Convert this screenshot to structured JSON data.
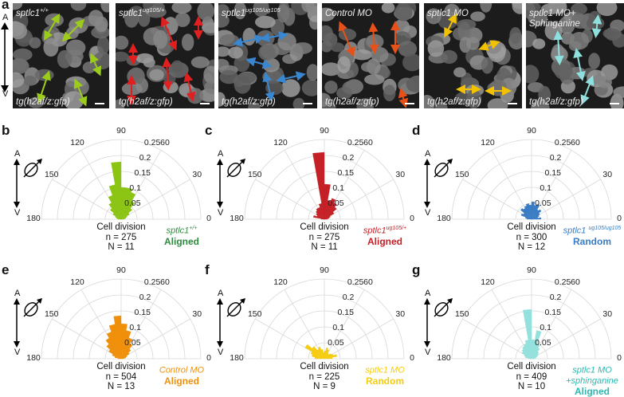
{
  "panel_a": {
    "letter": "a",
    "axis": {
      "top": "A",
      "bottom": "V"
    },
    "images": [
      {
        "title_base": "sptlc1",
        "title_sup": "+/+",
        "title_line2": "",
        "line": "tg(h2af/z:gfp)",
        "arrow_color": "#9ccc1a"
      },
      {
        "title_base": "sptlc1",
        "title_sup": "ug105/+",
        "title_line2": "",
        "line": "tg(h2af/z:gfp)",
        "arrow_color": "#e02020"
      },
      {
        "title_base": "sptlc1",
        "title_sup": "ug105/ug105",
        "title_line2": "",
        "line": "tg(h2af/z:gfp)",
        "arrow_color": "#3a86cf"
      },
      {
        "title_base": "Control MO",
        "title_sup": "",
        "title_line2": "",
        "line": "tg(h2af/z:gfp)",
        "arrow_color": "#e8501a"
      },
      {
        "title_base": "sptlc1 MO",
        "title_sup": "",
        "title_line2": "",
        "line": "tg(h2af/z:gfp)",
        "arrow_color": "#f2c200"
      },
      {
        "title_base": "sptlc1 MO+",
        "title_sup": "",
        "title_line2": "Sphinganine",
        "line": "tg(h2af/z:gfp)",
        "arrow_color": "#8ee0de"
      }
    ]
  },
  "chart_data": [
    {
      "type": "polar-histogram",
      "letter": "b",
      "color": "#8cc414",
      "label_color": "#2e8b3e",
      "angle_ticks": [
        "180",
        "150",
        "120",
        "90",
        "60",
        "30",
        "0"
      ],
      "radial_ticks": [
        "0.05",
        "0.1",
        "0.15",
        "0.2",
        "0.25"
      ],
      "rlim": [
        0,
        0.25
      ],
      "axis": {
        "top": "A",
        "bottom": "V"
      },
      "caption": {
        "title": "Cell division",
        "n": "n = 275",
        "N": "N = 11"
      },
      "condition": {
        "base": "sptlc1",
        "sup": "+/+",
        "line2": "",
        "status": "Aligned"
      },
      "bin_width_deg": 10,
      "bins_center_deg": [
        5,
        15,
        25,
        35,
        45,
        55,
        65,
        75,
        85,
        95,
        105,
        115,
        125,
        135,
        145,
        155,
        165,
        175
      ],
      "values": [
        0.01,
        0.015,
        0.02,
        0.03,
        0.045,
        0.065,
        0.09,
        0.1,
        0.1,
        0.18,
        0.11,
        0.08,
        0.06,
        0.045,
        0.03,
        0.02,
        0.015,
        0.01
      ]
    },
    {
      "type": "polar-histogram",
      "letter": "c",
      "color": "#c42026",
      "label_color": "#c42026",
      "angle_ticks": [
        "180",
        "150",
        "120",
        "90",
        "60",
        "30",
        "0"
      ],
      "radial_ticks": [
        "0.05",
        "0.1",
        "0.15",
        "0.2",
        "0.25"
      ],
      "rlim": [
        0,
        0.25
      ],
      "axis": {
        "top": "A",
        "bottom": "V"
      },
      "caption": {
        "title": "Cell division",
        "n": "n = 275",
        "N": "N = 11"
      },
      "condition": {
        "base": "sptlc1",
        "sup": "ug105/+",
        "line2": "",
        "status": "Aligned"
      },
      "bin_width_deg": 10,
      "bins_center_deg": [
        5,
        15,
        25,
        35,
        45,
        55,
        65,
        75,
        85,
        95,
        105,
        115,
        125,
        135,
        145,
        155,
        165,
        175
      ],
      "values": [
        0.01,
        0.015,
        0.02,
        0.035,
        0.05,
        0.06,
        0.07,
        0.06,
        0.11,
        0.21,
        0.05,
        0.04,
        0.04,
        0.035,
        0.03,
        0.025,
        0.035,
        0.01
      ]
    },
    {
      "type": "polar-histogram",
      "letter": "d",
      "color": "#3a7cc4",
      "label_color": "#3a7cc4",
      "angle_ticks": [
        "180",
        "150",
        "120",
        "90",
        "60",
        "30",
        "0"
      ],
      "radial_ticks": [
        "0.05",
        "0.1",
        "0.15",
        "0.2",
        "0.25"
      ],
      "rlim": [
        0,
        0.25
      ],
      "axis": {
        "top": "A",
        "bottom": "V"
      },
      "caption": {
        "title": "Cell division",
        "n": "n = 300",
        "N": "N = 12"
      },
      "condition": {
        "base": "sptlc1 ",
        "sup": "ug105/ug105",
        "line2": "",
        "status": "Random"
      },
      "bin_width_deg": 10,
      "bins_center_deg": [
        5,
        15,
        25,
        35,
        45,
        55,
        65,
        75,
        85,
        95,
        105,
        115,
        125,
        135,
        145,
        155,
        165,
        175
      ],
      "values": [
        0.03,
        0.02,
        0.025,
        0.03,
        0.04,
        0.035,
        0.05,
        0.045,
        0.055,
        0.045,
        0.05,
        0.045,
        0.04,
        0.045,
        0.03,
        0.035,
        0.02,
        0.015
      ]
    },
    {
      "type": "polar-histogram",
      "letter": "e",
      "color": "#f0900a",
      "label_color": "#f0900a",
      "angle_ticks": [
        "180",
        "150",
        "120",
        "90",
        "60",
        "30",
        "0"
      ],
      "radial_ticks": [
        "0.05",
        "0.1",
        "0.15",
        "0.2",
        "0.25"
      ],
      "rlim": [
        0,
        0.25
      ],
      "axis": {
        "top": "A",
        "bottom": "V"
      },
      "caption": {
        "title": "Cell division",
        "n": "n = 504",
        "N": "N = 13"
      },
      "condition": {
        "base": "Control MO",
        "sup": "",
        "line2": "",
        "status": "Aligned"
      },
      "bin_width_deg": 10,
      "bins_center_deg": [
        5,
        15,
        25,
        35,
        45,
        55,
        65,
        75,
        85,
        95,
        105,
        115,
        125,
        135,
        145,
        155,
        165,
        175
      ],
      "values": [
        0.01,
        0.015,
        0.02,
        0.03,
        0.04,
        0.055,
        0.07,
        0.09,
        0.11,
        0.135,
        0.11,
        0.09,
        0.075,
        0.06,
        0.045,
        0.03,
        0.02,
        0.01
      ]
    },
    {
      "type": "polar-histogram",
      "letter": "f",
      "color": "#f5cc10",
      "label_color": "#f5cc10",
      "angle_ticks": [
        "180",
        "150",
        "120",
        "90",
        "60",
        "30",
        "0"
      ],
      "radial_ticks": [
        "0.05",
        "0.1",
        "0.15",
        "0.2",
        "0.25"
      ],
      "rlim": [
        0,
        0.25
      ],
      "axis": {
        "top": "A",
        "bottom": "V"
      },
      "caption": {
        "title": "Cell division",
        "n": "n = 225",
        "N": "N = 9"
      },
      "condition": {
        "base": "sptlc1 MO",
        "sup": "",
        "line2": "",
        "status": "Random"
      },
      "bin_width_deg": 10,
      "bins_center_deg": [
        5,
        15,
        25,
        35,
        45,
        55,
        65,
        75,
        85,
        95,
        105,
        115,
        125,
        135,
        145,
        155,
        165,
        175
      ],
      "values": [
        0.025,
        0.04,
        0.03,
        0.025,
        0.02,
        0.02,
        0.03,
        0.035,
        0.025,
        0.02,
        0.03,
        0.04,
        0.035,
        0.05,
        0.07,
        0.045,
        0.04,
        0.03
      ]
    },
    {
      "type": "polar-histogram",
      "letter": "g",
      "color": "#94e0dc",
      "label_color": "#2fb6b0",
      "angle_ticks": [
        "180",
        "150",
        "120",
        "90",
        "60",
        "30",
        "0"
      ],
      "radial_ticks": [
        "0.05",
        "0.1",
        "0.15",
        "0.2",
        "0.25"
      ],
      "rlim": [
        0,
        0.25
      ],
      "axis": {
        "top": "A",
        "bottom": "V"
      },
      "caption": {
        "title": "Cell division",
        "n": "n = 409",
        "N": "N = 10"
      },
      "condition": {
        "base": "sptlc1 MO",
        "sup": "",
        "line2": "+sphinganine",
        "status": "Aligned"
      },
      "bin_width_deg": 10,
      "bins_center_deg": [
        5,
        15,
        25,
        35,
        45,
        55,
        65,
        75,
        85,
        95,
        105,
        115,
        125,
        135,
        145,
        155,
        165,
        175
      ],
      "values": [
        0.01,
        0.015,
        0.02,
        0.025,
        0.03,
        0.04,
        0.05,
        0.09,
        0.06,
        0.155,
        0.06,
        0.05,
        0.045,
        0.04,
        0.035,
        0.025,
        0.02,
        0.01
      ]
    }
  ]
}
